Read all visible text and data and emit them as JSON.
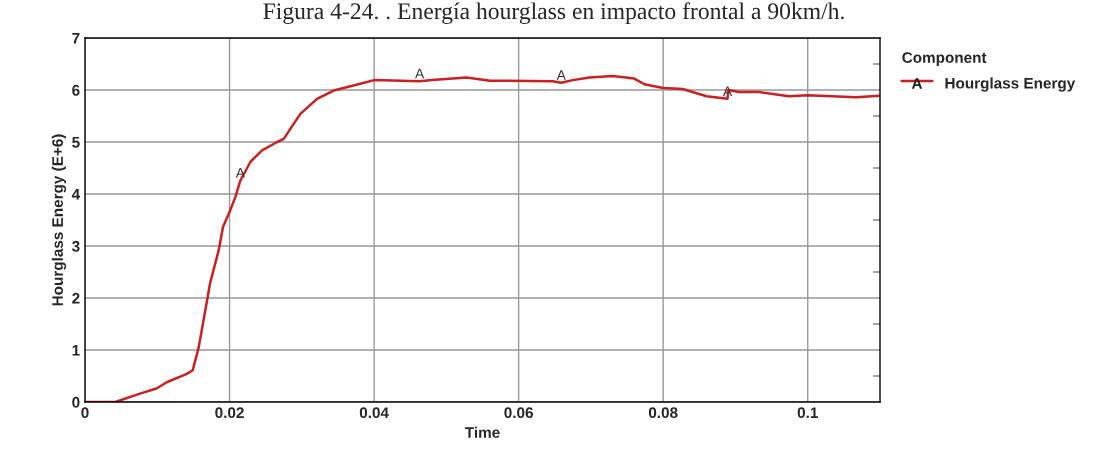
{
  "chart_data": {
    "type": "line",
    "title": "Figura 4-24. . Energía hourglass en impacto frontal a 90km/h.",
    "xlabel": "Time",
    "ylabel": "Hourglass Energy (E+6)",
    "legend_title": "Component",
    "x": [
      0,
      0.0042,
      0.0076,
      0.0099,
      0.0113,
      0.0141,
      0.0149,
      0.0157,
      0.0164,
      0.0173,
      0.0185,
      0.0191,
      0.0199,
      0.0208,
      0.0215,
      0.0229,
      0.0245,
      0.0266,
      0.0275,
      0.0286,
      0.0298,
      0.0321,
      0.0344,
      0.0381,
      0.04,
      0.0463,
      0.048,
      0.0528,
      0.056,
      0.0647,
      0.0659,
      0.0675,
      0.0698,
      0.073,
      0.076,
      0.0774,
      0.08,
      0.0827,
      0.086,
      0.0889,
      0.089,
      0.0905,
      0.0933,
      0.0974,
      0.1,
      0.1067,
      0.11
    ],
    "series": [
      {
        "name": "Hourglass Energy",
        "color": "#cc1f1f",
        "values": [
          0,
          0,
          0.16,
          0.26,
          0.38,
          0.54,
          0.61,
          1.03,
          1.57,
          2.28,
          2.92,
          3.37,
          3.62,
          3.94,
          4.26,
          4.62,
          4.84,
          5.0,
          5.06,
          5.29,
          5.54,
          5.83,
          5.99,
          6.12,
          6.19,
          6.17,
          6.19,
          6.24,
          6.18,
          6.17,
          6.14,
          6.19,
          6.24,
          6.27,
          6.22,
          6.11,
          6.04,
          6.02,
          5.88,
          5.83,
          6.0,
          5.96,
          5.96,
          5.88,
          5.9,
          5.86,
          5.89
        ]
      }
    ],
    "annotations": [
      {
        "text": "A",
        "x": 0.0215,
        "y": 4.26
      },
      {
        "text": "A",
        "x": 0.0463,
        "y": 6.17
      },
      {
        "text": "A",
        "x": 0.0659,
        "y": 6.14
      },
      {
        "text": "A",
        "x": 0.0889,
        "y": 5.83
      }
    ],
    "xlim": [
      0,
      0.11
    ],
    "xticks": [
      0,
      0.02,
      0.04,
      0.06,
      0.08,
      0.1
    ],
    "ylim": [
      0,
      7
    ],
    "yticks": [
      0,
      1,
      2,
      3,
      4,
      5,
      6,
      7
    ],
    "grid": true,
    "legend": "right",
    "marker": "none",
    "line_style": "solid"
  }
}
